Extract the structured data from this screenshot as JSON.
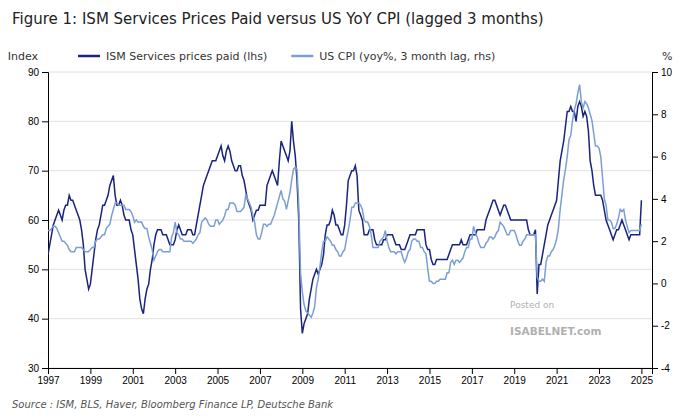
{
  "chart_data": {
    "type": "line",
    "title": "Figure 1: ISM Services Prices Paid versus US YoY CPI (lagged 3 months)",
    "ylabel": "Index",
    "y2label": "%",
    "annotations": [
      "Source : ISM, BLS, Haver, Bloomberg Finance LP, Deutsche Bank",
      "Posted on",
      "ISABELNET.com"
    ],
    "grid": true,
    "legend": "top-left",
    "xlim": [
      1997,
      2025.5
    ],
    "xticks": [
      1997,
      1999,
      2001,
      2003,
      2005,
      2007,
      2009,
      2011,
      2013,
      2015,
      2017,
      2019,
      2021,
      2023,
      2025
    ],
    "ylim": [
      30,
      90
    ],
    "yticks": [
      30,
      40,
      50,
      60,
      70,
      80,
      90
    ],
    "y2lim": [
      -4,
      10
    ],
    "y2ticks": [
      -4,
      -2,
      0,
      2,
      4,
      6,
      8,
      10
    ],
    "x": [
      1997.0,
      1997.083,
      1997.167,
      1997.25,
      1997.333,
      1997.417,
      1997.5,
      1997.583,
      1997.667,
      1997.75,
      1997.833,
      1997.917,
      1998.0,
      1998.083,
      1998.167,
      1998.25,
      1998.333,
      1998.417,
      1998.5,
      1998.583,
      1998.667,
      1998.75,
      1998.833,
      1998.917,
      1999.0,
      1999.083,
      1999.167,
      1999.25,
      1999.333,
      1999.417,
      1999.5,
      1999.583,
      1999.667,
      1999.75,
      1999.833,
      1999.917,
      2000.0,
      2000.083,
      2000.167,
      2000.25,
      2000.333,
      2000.417,
      2000.5,
      2000.583,
      2000.667,
      2000.75,
      2000.833,
      2000.917,
      2001.0,
      2001.083,
      2001.167,
      2001.25,
      2001.333,
      2001.417,
      2001.5,
      2001.583,
      2001.667,
      2001.75,
      2001.833,
      2001.917,
      2002.0,
      2002.083,
      2002.167,
      2002.25,
      2002.333,
      2002.417,
      2002.5,
      2002.583,
      2002.667,
      2002.75,
      2002.833,
      2002.917,
      2003.0,
      2003.083,
      2003.167,
      2003.25,
      2003.333,
      2003.417,
      2003.5,
      2003.583,
      2003.667,
      2003.75,
      2003.833,
      2003.917,
      2004.0,
      2004.083,
      2004.167,
      2004.25,
      2004.333,
      2004.417,
      2004.5,
      2004.583,
      2004.667,
      2004.75,
      2004.833,
      2004.917,
      2005.0,
      2005.083,
      2005.167,
      2005.25,
      2005.333,
      2005.417,
      2005.5,
      2005.583,
      2005.667,
      2005.75,
      2005.833,
      2005.917,
      2006.0,
      2006.083,
      2006.167,
      2006.25,
      2006.333,
      2006.417,
      2006.5,
      2006.583,
      2006.667,
      2006.75,
      2006.833,
      2006.917,
      2007.0,
      2007.083,
      2007.167,
      2007.25,
      2007.333,
      2007.417,
      2007.5,
      2007.583,
      2007.667,
      2007.75,
      2007.833,
      2007.917,
      2008.0,
      2008.083,
      2008.167,
      2008.25,
      2008.333,
      2008.417,
      2008.5,
      2008.583,
      2008.667,
      2008.75,
      2008.833,
      2008.917,
      2009.0,
      2009.083,
      2009.167,
      2009.25,
      2009.333,
      2009.417,
      2009.5,
      2009.583,
      2009.667,
      2009.75,
      2009.833,
      2009.917,
      2010.0,
      2010.083,
      2010.167,
      2010.25,
      2010.333,
      2010.417,
      2010.5,
      2010.583,
      2010.667,
      2010.75,
      2010.833,
      2010.917,
      2011.0,
      2011.083,
      2011.167,
      2011.25,
      2011.333,
      2011.417,
      2011.5,
      2011.583,
      2011.667,
      2011.75,
      2011.833,
      2011.917,
      2012.0,
      2012.083,
      2012.167,
      2012.25,
      2012.333,
      2012.417,
      2012.5,
      2012.583,
      2012.667,
      2012.75,
      2012.833,
      2012.917,
      2013.0,
      2013.083,
      2013.167,
      2013.25,
      2013.333,
      2013.417,
      2013.5,
      2013.583,
      2013.667,
      2013.75,
      2013.833,
      2013.917,
      2014.0,
      2014.083,
      2014.167,
      2014.25,
      2014.333,
      2014.417,
      2014.5,
      2014.583,
      2014.667,
      2014.75,
      2014.833,
      2014.917,
      2015.0,
      2015.083,
      2015.167,
      2015.25,
      2015.333,
      2015.417,
      2015.5,
      2015.583,
      2015.667,
      2015.75,
      2015.833,
      2015.917,
      2016.0,
      2016.083,
      2016.167,
      2016.25,
      2016.333,
      2016.417,
      2016.5,
      2016.583,
      2016.667,
      2016.75,
      2016.833,
      2016.917,
      2017.0,
      2017.083,
      2017.167,
      2017.25,
      2017.333,
      2017.417,
      2017.5,
      2017.583,
      2017.667,
      2017.75,
      2017.833,
      2017.917,
      2018.0,
      2018.083,
      2018.167,
      2018.25,
      2018.333,
      2018.417,
      2018.5,
      2018.583,
      2018.667,
      2018.75,
      2018.833,
      2018.917,
      2019.0,
      2019.083,
      2019.167,
      2019.25,
      2019.333,
      2019.417,
      2019.5,
      2019.583,
      2019.667,
      2019.75,
      2019.833,
      2019.917,
      2020.0,
      2020.083,
      2020.167,
      2020.25,
      2020.333,
      2020.417,
      2020.5,
      2020.583,
      2020.667,
      2020.75,
      2020.833,
      2020.917,
      2021.0,
      2021.083,
      2021.167,
      2021.25,
      2021.333,
      2021.417,
      2021.5,
      2021.583,
      2021.667,
      2021.75,
      2021.833,
      2021.917,
      2022.0,
      2022.083,
      2022.167,
      2022.25,
      2022.333,
      2022.417,
      2022.5,
      2022.583,
      2022.667,
      2022.75,
      2022.833,
      2022.917,
      2023.0,
      2023.083,
      2023.167,
      2023.25,
      2023.333,
      2023.417,
      2023.5,
      2023.583,
      2023.667,
      2023.75,
      2023.833,
      2023.917,
      2024.0,
      2024.083,
      2024.167,
      2024.25,
      2024.333,
      2024.417,
      2024.5,
      2024.583,
      2024.667,
      2024.75,
      2024.833,
      2024.917,
      2025.0
    ],
    "series": [
      {
        "name": "ISM Services prices paid (lhs)",
        "color": "#1a237e",
        "axis": "y",
        "values": [
          53,
          55,
          57,
          59,
          60,
          61,
          62,
          61,
          60,
          62,
          63,
          63,
          65,
          64,
          64,
          63,
          62,
          61,
          60,
          58,
          55,
          50,
          48,
          46,
          47,
          50,
          53,
          56,
          58,
          59,
          61,
          63,
          63,
          64,
          65,
          67,
          68,
          69,
          65,
          63,
          63,
          64,
          63,
          61,
          60,
          60,
          60,
          58,
          57,
          54,
          51,
          48,
          44,
          42,
          41,
          44,
          46,
          47,
          50,
          52,
          55,
          57,
          58,
          58,
          58,
          57,
          57,
          57,
          56,
          55,
          55,
          55,
          56,
          58,
          59,
          58,
          57,
          57,
          57,
          58,
          58,
          58,
          57,
          57,
          59,
          61,
          63,
          65,
          67,
          68,
          69,
          70,
          71,
          72,
          72,
          72,
          73,
          74,
          75,
          73,
          72,
          74,
          75,
          74,
          72,
          71,
          70,
          70,
          71,
          71,
          69,
          68,
          66,
          64,
          63,
          62,
          60,
          61,
          62,
          62,
          63,
          63,
          63,
          63,
          67,
          68,
          69,
          70,
          69,
          68,
          67,
          72,
          76,
          75,
          74,
          73,
          72,
          74,
          80,
          76,
          73,
          68,
          60,
          42,
          37,
          39,
          40,
          41,
          44,
          46,
          48,
          49,
          50,
          49,
          50,
          51,
          53,
          57,
          59,
          59,
          60,
          62,
          61,
          59,
          59,
          58,
          57,
          57,
          59,
          63,
          68,
          69,
          70,
          70,
          71,
          69,
          62,
          61,
          60,
          57,
          57,
          57,
          58,
          58,
          58,
          56,
          55,
          55,
          55,
          55,
          56,
          56,
          57,
          57,
          57,
          57,
          56,
          55,
          55,
          55,
          54,
          54,
          54,
          55,
          56,
          57,
          57,
          57,
          57,
          58,
          58,
          58,
          58,
          58,
          55,
          54,
          54,
          52,
          51,
          51,
          52,
          52,
          52,
          52,
          52,
          52,
          52,
          53,
          54,
          55,
          55,
          55,
          55,
          55,
          56,
          55,
          55,
          55,
          56,
          57,
          57,
          57,
          57,
          58,
          58,
          58,
          58,
          58,
          60,
          61,
          62,
          63,
          64,
          64,
          63,
          62,
          61,
          62,
          63,
          63,
          62,
          61,
          60,
          60,
          60,
          60,
          60,
          60,
          60,
          60,
          60,
          60,
          58,
          57,
          57,
          57,
          58,
          45,
          51,
          51,
          53,
          55,
          57,
          59,
          60,
          61,
          62,
          63,
          64,
          68,
          72,
          74,
          76,
          79,
          82,
          82,
          83,
          82,
          82,
          80,
          83,
          84,
          83,
          81,
          82,
          81,
          78,
          72,
          70,
          67,
          65,
          65,
          65,
          65,
          64,
          62,
          60,
          59,
          58,
          57,
          56,
          57,
          58,
          58,
          59,
          60,
          59,
          58,
          57,
          56,
          57,
          57,
          57,
          57,
          57,
          57,
          64
        ]
      },
      {
        "name": "US CPI (yoy%, 3 month lag, rhs)",
        "color": "#7b9fd4",
        "axis": "y2",
        "values": [
          2.5,
          2.5,
          2.6,
          2.7,
          2.7,
          2.6,
          2.4,
          2.2,
          2.0,
          2.0,
          1.9,
          1.8,
          1.6,
          1.5,
          1.5,
          1.5,
          1.7,
          1.7,
          1.7,
          1.7,
          1.6,
          1.5,
          1.5,
          1.5,
          1.6,
          1.7,
          1.7,
          2.0,
          2.1,
          2.1,
          2.2,
          2.3,
          2.3,
          2.6,
          2.7,
          2.8,
          3.2,
          3.5,
          3.8,
          3.8,
          3.7,
          3.7,
          3.7,
          3.7,
          3.5,
          3.5,
          3.5,
          3.4,
          3.2,
          2.9,
          3.0,
          2.9,
          2.9,
          2.9,
          2.7,
          2.6,
          2.6,
          2.2,
          1.9,
          1.6,
          1.1,
          1.3,
          1.5,
          1.6,
          1.6,
          1.5,
          1.5,
          1.5,
          1.5,
          1.5,
          2.2,
          2.4,
          2.9,
          2.4,
          2.3,
          2.1,
          2.1,
          2.0,
          2.0,
          2.0,
          2.0,
          2.0,
          1.9,
          2.0,
          2.1,
          2.3,
          2.4,
          2.9,
          3.0,
          3.1,
          3.0,
          2.8,
          2.7,
          2.7,
          2.7,
          3.0,
          3.0,
          2.8,
          2.9,
          3.0,
          3.2,
          3.5,
          3.5,
          3.8,
          3.8,
          3.8,
          3.7,
          3.4,
          3.4,
          3.4,
          3.5,
          3.6,
          4.2,
          4.0,
          3.8,
          3.6,
          3.2,
          2.9,
          2.3,
          2.1,
          2.1,
          2.4,
          2.8,
          2.8,
          2.7,
          2.8,
          2.8,
          3.0,
          3.2,
          3.5,
          3.8,
          4.1,
          4.4,
          4.0,
          3.9,
          3.5,
          3.9,
          4.3,
          4.9,
          5.4,
          5.5,
          5.4,
          3.7,
          0.5,
          -0.4,
          -1.0,
          -1.3,
          -1.4,
          -1.5,
          -1.6,
          -1.4,
          -1.1,
          -0.2,
          0.2,
          0.8,
          1.5,
          2.0,
          2.0,
          2.2,
          2.1,
          2.0,
          1.8,
          1.8,
          1.6,
          1.5,
          1.3,
          1.3,
          1.5,
          1.6,
          2.1,
          2.5,
          3.0,
          3.6,
          3.6,
          3.8,
          3.8,
          3.8,
          3.7,
          3.5,
          3.0,
          2.9,
          2.9,
          2.7,
          2.3,
          1.7,
          1.7,
          1.7,
          1.7,
          2.0,
          2.1,
          2.2,
          2.5,
          2.0,
          1.7,
          1.5,
          1.5,
          1.5,
          1.4,
          1.5,
          1.5,
          1.5,
          1.2,
          1.0,
          1.2,
          1.5,
          1.6,
          2.0,
          2.1,
          2.1,
          2.0,
          2.0,
          1.7,
          1.7,
          1.5,
          1.4,
          0.7,
          0.1,
          0.1,
          0.0,
          0.0,
          0.1,
          0.1,
          0.2,
          0.2,
          0.2,
          0.2,
          0.5,
          0.5,
          1.0,
          1.1,
          0.9,
          1.1,
          1.1,
          1.0,
          1.1,
          1.2,
          1.5,
          1.7,
          1.7,
          2.1,
          2.1,
          2.7,
          2.4,
          2.2,
          1.9,
          1.7,
          1.7,
          1.7,
          1.9,
          2.0,
          2.2,
          2.2,
          2.1,
          2.2,
          2.4,
          2.5,
          2.9,
          2.8,
          2.7,
          2.5,
          2.3,
          2.3,
          2.5,
          2.5,
          2.5,
          2.3,
          2.0,
          1.8,
          1.8,
          2.0,
          2.1,
          2.3,
          2.3,
          2.3,
          2.3,
          2.3,
          2.3,
          0.3,
          0.1,
          0.1,
          0.2,
          0.1,
          1.0,
          1.3,
          1.3,
          1.5,
          1.6,
          1.8,
          2.1,
          2.6,
          3.5,
          4.2,
          4.9,
          5.4,
          6.0,
          6.8,
          7.0,
          7.7,
          8.2,
          8.5,
          9.0,
          9.4,
          8.6,
          8.3,
          8.6,
          8.5,
          8.3,
          8.0,
          7.7,
          7.1,
          6.5,
          6.5,
          6.4,
          6.0,
          5.0,
          4.0,
          3.7,
          3.0,
          3.0,
          2.9,
          2.6,
          2.6,
          2.8,
          3.1,
          3.5,
          3.4,
          3.5,
          3.0,
          2.7,
          2.4,
          2.5,
          2.5,
          2.5,
          2.5,
          2.5,
          2.5,
          2.8
        ]
      }
    ]
  }
}
